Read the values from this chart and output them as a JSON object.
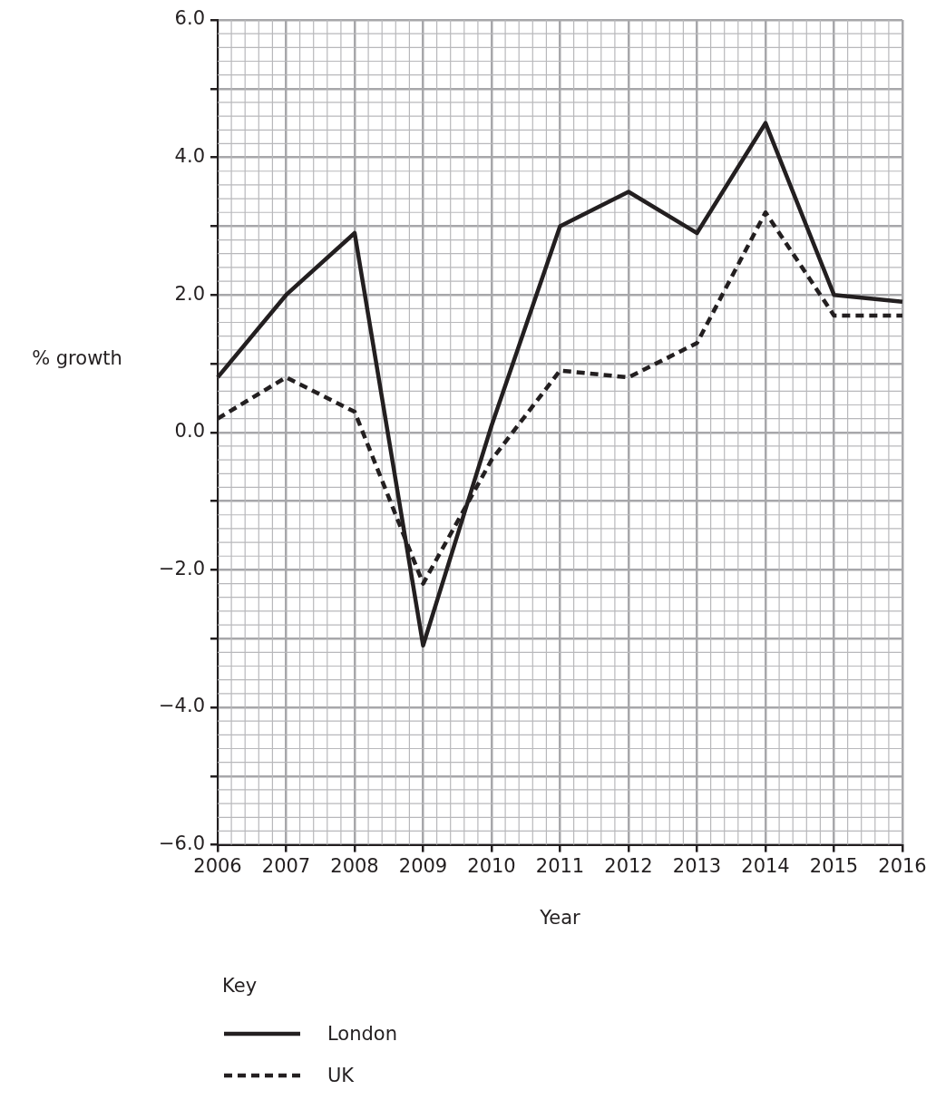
{
  "chart_data": {
    "type": "line",
    "xlabel": "Year",
    "ylabel": "% growth",
    "legend_title": "Key",
    "legend": "bottom left",
    "grid": true,
    "marker": "none",
    "categories": [
      "2006",
      "2007",
      "2008",
      "2009",
      "2010",
      "2011",
      "2012",
      "2013",
      "2014",
      "2015",
      "2016"
    ],
    "ylim": [
      -6,
      6
    ],
    "yticks": [
      {
        "value": -6,
        "label": "−6.0"
      },
      {
        "value": -5,
        "label": null
      },
      {
        "value": -4,
        "label": "−4.0"
      },
      {
        "value": -3,
        "label": null
      },
      {
        "value": -2,
        "label": "−2.0"
      },
      {
        "value": -1,
        "label": null
      },
      {
        "value": 0,
        "label": "0.0"
      },
      {
        "value": 1,
        "label": null
      },
      {
        "value": 2,
        "label": "2.0"
      },
      {
        "value": 3,
        "label": null
      },
      {
        "value": 4,
        "label": "4.0"
      },
      {
        "value": 5,
        "label": null
      },
      {
        "value": 6,
        "label": "6.0"
      }
    ],
    "series": [
      {
        "name": "London",
        "color": "#231f20",
        "line_style": "solid",
        "values": [
          0.8,
          2.0,
          2.9,
          -3.1,
          0.1,
          3.0,
          3.5,
          2.9,
          4.5,
          2.0,
          1.9
        ]
      },
      {
        "name": "UK",
        "color": "#231f20",
        "line_style": "dashed",
        "values": [
          0.2,
          0.8,
          0.3,
          -2.2,
          -0.4,
          0.9,
          0.8,
          1.3,
          3.2,
          1.7,
          1.7
        ]
      }
    ]
  }
}
